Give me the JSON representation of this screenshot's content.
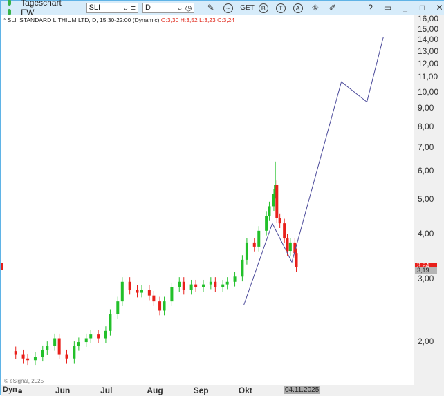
{
  "window": {
    "title": "Tageschart EW",
    "symbol": "SLI",
    "interval": "D",
    "toolbar": [
      "pencil",
      "indicator",
      "GET",
      "B",
      "T",
      "A",
      "objects",
      "notes"
    ],
    "help": "?"
  },
  "info": {
    "text": "* SLI, STANDARD LITHIUM LTD, D, 15:30-22:00 (Dynamic)",
    "ohlc": "O:3,30 H:3,52 L:3,23 C:3,24"
  },
  "price_labels": {
    "last": "3,24",
    "other": "3,19"
  },
  "bottom": {
    "mode": "Dyn",
    "cursor_date": "04.11.2025",
    "copyright": "© eSignal, 2025"
  },
  "colors": {
    "up": "#22c02a",
    "down": "#e8201b",
    "projection": "#4b4a9a"
  },
  "chart_data": {
    "type": "candlestick",
    "yscale": "log",
    "ylim": [
      1.6,
      16.5
    ],
    "yticks": [
      "16,00",
      "15,00",
      "14,00",
      "13,00",
      "12,00",
      "11,00",
      "10,00",
      "9,00",
      "8,00",
      "7,00",
      "6,00",
      "5,00",
      "4,00",
      "3,00",
      "2,00"
    ],
    "ytick_values": [
      16,
      15,
      14,
      13,
      12,
      11,
      10,
      9,
      8,
      7,
      6,
      5,
      4,
      3,
      2
    ],
    "xticks": [
      {
        "label": "Jun",
        "date": "2025-06-01"
      },
      {
        "label": "Jul",
        "date": "2025-07-01"
      },
      {
        "label": "Aug",
        "date": "2025-08-01"
      },
      {
        "label": "Sep",
        "date": "2025-09-01"
      },
      {
        "label": "Okt",
        "date": "2025-10-01"
      }
    ],
    "closes": [
      [
        "2025-05-01",
        1.85
      ],
      [
        "2025-05-06",
        1.8
      ],
      [
        "2025-05-09",
        1.78
      ],
      [
        "2025-05-14",
        1.82
      ],
      [
        "2025-05-19",
        1.9
      ],
      [
        "2025-05-22",
        1.95
      ],
      [
        "2025-05-27",
        2.05
      ],
      [
        "2025-05-30",
        1.85
      ],
      [
        "2025-06-04",
        1.8
      ],
      [
        "2025-06-09",
        1.95
      ],
      [
        "2025-06-12",
        2.0
      ],
      [
        "2025-06-17",
        2.05
      ],
      [
        "2025-06-20",
        2.1
      ],
      [
        "2025-06-25",
        2.05
      ],
      [
        "2025-06-30",
        2.15
      ],
      [
        "2025-07-03",
        2.4
      ],
      [
        "2025-07-08",
        2.6
      ],
      [
        "2025-07-11",
        2.95
      ],
      [
        "2025-07-16",
        2.8
      ],
      [
        "2025-07-21",
        2.75
      ],
      [
        "2025-07-24",
        2.8
      ],
      [
        "2025-07-29",
        2.7
      ],
      [
        "2025-08-01",
        2.6
      ],
      [
        "2025-08-05",
        2.45
      ],
      [
        "2025-08-08",
        2.6
      ],
      [
        "2025-08-13",
        2.85
      ],
      [
        "2025-08-18",
        2.95
      ],
      [
        "2025-08-21",
        2.8
      ],
      [
        "2025-08-26",
        2.9
      ],
      [
        "2025-08-29",
        2.85
      ],
      [
        "2025-09-03",
        2.9
      ],
      [
        "2025-09-08",
        2.95
      ],
      [
        "2025-09-11",
        2.85
      ],
      [
        "2025-09-16",
        2.9
      ],
      [
        "2025-09-19",
        2.95
      ],
      [
        "2025-09-24",
        3.05
      ],
      [
        "2025-09-29",
        3.4
      ],
      [
        "2025-10-02",
        3.8
      ],
      [
        "2025-10-07",
        3.7
      ],
      [
        "2025-10-10",
        4.1
      ],
      [
        "2025-10-15",
        4.5
      ],
      [
        "2025-10-17",
        4.8
      ],
      [
        "2025-10-20",
        5.2
      ],
      [
        "2025-10-21",
        5.5
      ],
      [
        "2025-10-22",
        4.45
      ],
      [
        "2025-10-24",
        4.3
      ],
      [
        "2025-10-27",
        3.9
      ],
      [
        "2025-10-29",
        3.6
      ],
      [
        "2025-10-31",
        3.8
      ],
      [
        "2025-11-03",
        3.55
      ],
      [
        "2025-11-04",
        3.24
      ]
    ],
    "projection": [
      [
        "2025-09-30",
        2.54
      ],
      [
        "2025-10-19",
        4.3
      ],
      [
        "2025-11-01",
        3.35
      ],
      [
        "2025-12-04",
        10.7
      ],
      [
        "2025-12-21",
        9.4
      ],
      [
        "2026-01-01",
        14.3
      ]
    ]
  }
}
